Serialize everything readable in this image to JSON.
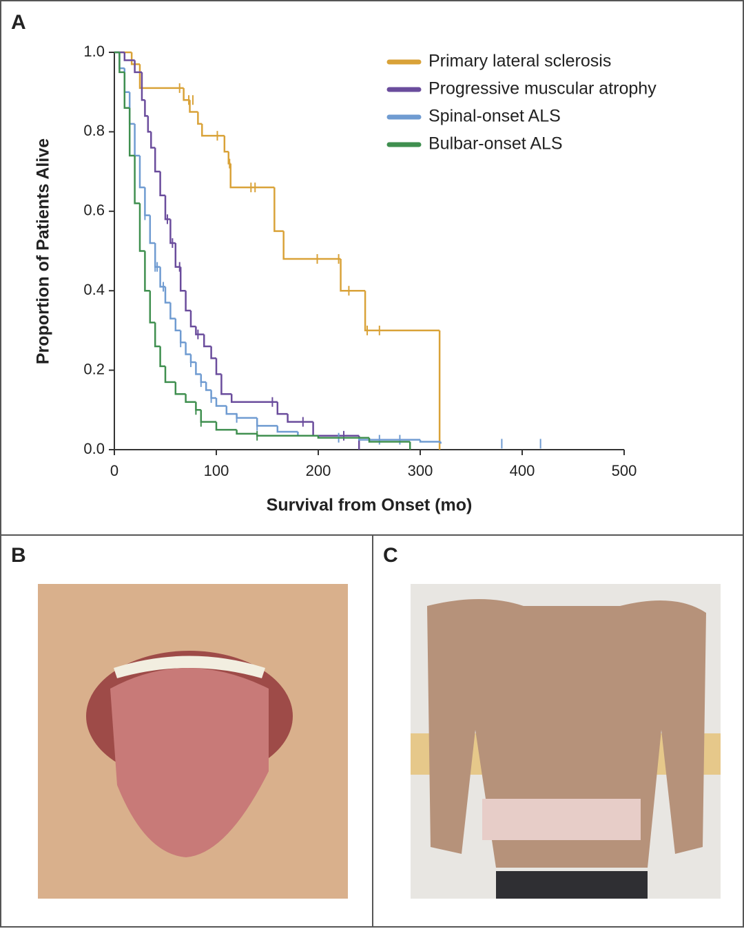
{
  "panel_labels": [
    "A",
    "B",
    "C"
  ],
  "chart_data": {
    "type": "step",
    "x_label": "Survival from Onset (mo)",
    "y_label": "Proportion of Patients Alive",
    "xlim": [
      0,
      500
    ],
    "xticks": [
      0,
      100,
      200,
      300,
      400,
      500
    ],
    "ylim": [
      0,
      1
    ],
    "yticks": [
      {
        "value": 0,
        "label": "0.0"
      },
      0.2,
      0.4,
      0.6,
      0.8,
      {
        "value": 1,
        "label": "1.0"
      }
    ],
    "legend": "upper right",
    "series": [
      {
        "name": "Primary lateral sclerosis",
        "color": "#d9a238",
        "x": [
          0,
          17,
          25,
          68,
          74,
          82,
          86,
          108,
          112,
          114,
          157,
          166,
          222,
          246,
          319
        ],
        "values": [
          1.0,
          0.97,
          0.91,
          0.88,
          0.85,
          0.82,
          0.79,
          0.75,
          0.72,
          0.66,
          0.55,
          0.48,
          0.4,
          0.3,
          0.0
        ],
        "censor_x": [
          64,
          73,
          77,
          101,
          113,
          134,
          138,
          199,
          220,
          230,
          248,
          260
        ],
        "censor_values": [
          0.91,
          0.88,
          0.88,
          0.79,
          0.72,
          0.66,
          0.66,
          0.48,
          0.48,
          0.4,
          0.3,
          0.3
        ]
      },
      {
        "name": "Progressive muscular atrophy",
        "color": "#6a4c9c",
        "x": [
          0,
          10,
          20,
          27,
          30,
          33,
          36,
          40,
          45,
          50,
          55,
          60,
          65,
          70,
          75,
          80,
          88,
          95,
          100,
          105,
          115,
          160,
          170,
          195,
          240
        ],
        "values": [
          1.0,
          0.98,
          0.95,
          0.88,
          0.84,
          0.8,
          0.76,
          0.7,
          0.64,
          0.58,
          0.52,
          0.46,
          0.4,
          0.35,
          0.31,
          0.29,
          0.26,
          0.23,
          0.19,
          0.14,
          0.12,
          0.09,
          0.07,
          0.035,
          0.0
        ],
        "censor_x": [
          52,
          57,
          64,
          82,
          155,
          185,
          225
        ],
        "censor_values": [
          0.58,
          0.52,
          0.46,
          0.29,
          0.12,
          0.07,
          0.035
        ]
      },
      {
        "name": "Spinal-onset ALS",
        "color": "#6f9bd1",
        "x": [
          0,
          5,
          10,
          15,
          20,
          25,
          30,
          35,
          40,
          45,
          50,
          55,
          60,
          65,
          70,
          75,
          80,
          85,
          90,
          95,
          100,
          110,
          120,
          140,
          160,
          180,
          200,
          240,
          300,
          320
        ],
        "values": [
          1.0,
          0.96,
          0.9,
          0.82,
          0.74,
          0.66,
          0.59,
          0.52,
          0.46,
          0.41,
          0.37,
          0.33,
          0.3,
          0.27,
          0.24,
          0.22,
          0.19,
          0.17,
          0.15,
          0.13,
          0.11,
          0.09,
          0.08,
          0.06,
          0.045,
          0.035,
          0.03,
          0.025,
          0.02,
          0.015
        ],
        "censor_x": [
          30,
          40,
          42,
          48,
          65,
          75,
          85,
          95,
          120,
          140,
          220,
          260,
          280,
          380,
          418
        ],
        "censor_values": [
          0.59,
          0.46,
          0.46,
          0.41,
          0.27,
          0.22,
          0.17,
          0.13,
          0.08,
          0.06,
          0.03,
          0.025,
          0.025,
          0.015,
          0.015
        ]
      },
      {
        "name": "Bulbar-onset ALS",
        "color": "#3f8f4f",
        "x": [
          0,
          5,
          10,
          15,
          20,
          25,
          30,
          35,
          40,
          45,
          50,
          60,
          70,
          80,
          85,
          100,
          120,
          140,
          200,
          250,
          290
        ],
        "values": [
          1.0,
          0.95,
          0.86,
          0.74,
          0.62,
          0.5,
          0.4,
          0.32,
          0.26,
          0.21,
          0.17,
          0.14,
          0.12,
          0.1,
          0.07,
          0.05,
          0.04,
          0.035,
          0.03,
          0.02,
          0.0
        ],
        "censor_x": [
          80,
          85,
          140
        ],
        "censor_values": [
          0.1,
          0.07,
          0.035
        ]
      }
    ]
  }
}
